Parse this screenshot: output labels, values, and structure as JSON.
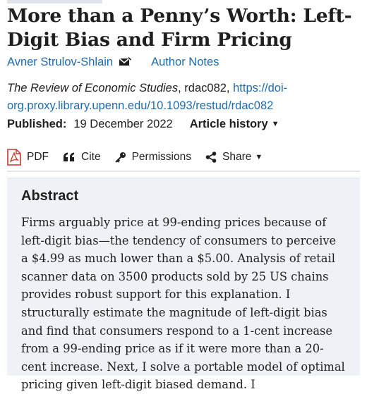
{
  "article": {
    "title": "More than a Penny’s Worth: Left-Digit Bias and Firm Pricing",
    "author": "Avner Strulov-Shlain",
    "author_notes": "Author Notes",
    "journal": "The Review of Economic Studies",
    "article_id": ", rdac082, ",
    "doi_link": "https://doi-org.proxy.library.upenn.edu/10.1093/restud/rdac082",
    "published_label": "Published:",
    "published_date": "19 December 2022",
    "article_history": "Article history"
  },
  "toolbar": {
    "pdf_label": "PDF",
    "cite_label": "Cite",
    "permissions_label": "Permissions",
    "share_label": "Share"
  },
  "abstract": {
    "heading": "Abstract",
    "text": "Firms arguably price at 99-ending prices because of left-digit bias—the tendency of consumers to perceive a $4.99 as much lower than a $5.00. Analysis of retail scanner data on 3500 products sold by 25 US chains provides robust support for this explanation. I structurally estimate the magnitude of left-digit bias and find that consumers respond to a 1-cent increase from a 99-ending price as if it were more than a 20-cent increase. Next, I solve a portable model of optimal pricing given left-digit biased demand. I"
  },
  "colors": {
    "link": "#1f6bb0",
    "pdf_icon": "#c8392b",
    "abstract_bg": "#eef1f5"
  }
}
